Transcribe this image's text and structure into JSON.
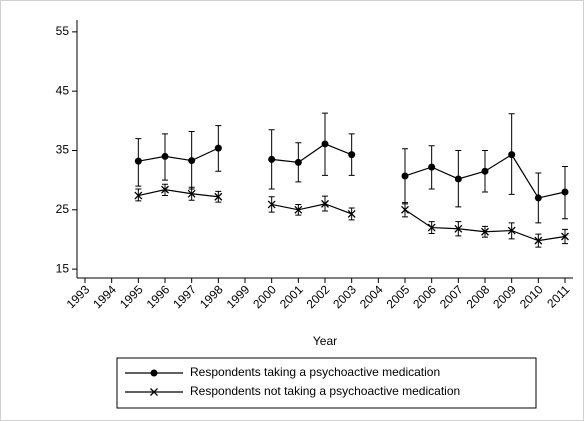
{
  "chart_data": {
    "type": "line",
    "x_label": "Year",
    "x": [
      1993,
      1994,
      1995,
      1996,
      1997,
      1998,
      1999,
      2000,
      2001,
      2002,
      2003,
      2004,
      2005,
      2006,
      2007,
      2008,
      2009,
      2010,
      2011
    ],
    "xlim": [
      1992.7,
      2011.3
    ],
    "xticks": [
      1993,
      1994,
      1995,
      1996,
      1997,
      1998,
      1999,
      2000,
      2001,
      2002,
      2003,
      2004,
      2005,
      2006,
      2007,
      2008,
      2009,
      2010,
      2011
    ],
    "ylim": [
      13.5,
      57
    ],
    "yticks": [
      15,
      25,
      35,
      45,
      55
    ],
    "grid": false,
    "legend": "bottom",
    "series": [
      {
        "name": "Respondents taking a psychoactive medication",
        "color": "#000000",
        "marker": "circle",
        "values": [
          null,
          null,
          33.2,
          34.0,
          33.3,
          35.4,
          null,
          33.5,
          33.0,
          36.1,
          34.3,
          null,
          30.7,
          32.2,
          30.2,
          31.5,
          34.3,
          27.0,
          28.0
        ],
        "ci_low": [
          null,
          null,
          29.0,
          30.0,
          28.5,
          31.5,
          null,
          28.5,
          29.7,
          30.8,
          30.8,
          null,
          26.0,
          28.5,
          25.5,
          28.0,
          27.6,
          22.8,
          23.5
        ],
        "ci_high": [
          null,
          null,
          37.0,
          37.8,
          38.2,
          39.2,
          null,
          38.5,
          36.3,
          41.3,
          37.8,
          null,
          35.3,
          35.8,
          35.0,
          35.0,
          41.2,
          31.2,
          32.3
        ]
      },
      {
        "name": "Respondents not taking a psychoactive medication",
        "color": "#000000",
        "marker": "x",
        "values": [
          null,
          null,
          27.4,
          28.4,
          27.7,
          27.2,
          null,
          25.9,
          25.0,
          26.0,
          24.3,
          null,
          25.0,
          22.0,
          21.8,
          21.3,
          21.5,
          19.8,
          20.5
        ],
        "ci_low": [
          null,
          null,
          26.5,
          27.4,
          26.6,
          26.3,
          null,
          24.6,
          24.1,
          24.8,
          23.3,
          null,
          23.8,
          21.0,
          20.6,
          20.4,
          20.1,
          18.7,
          19.3
        ],
        "ci_high": [
          null,
          null,
          28.5,
          29.3,
          28.8,
          28.1,
          null,
          27.2,
          25.9,
          27.3,
          25.3,
          null,
          26.2,
          23.0,
          23.0,
          22.2,
          22.8,
          20.9,
          21.7
        ]
      }
    ]
  }
}
